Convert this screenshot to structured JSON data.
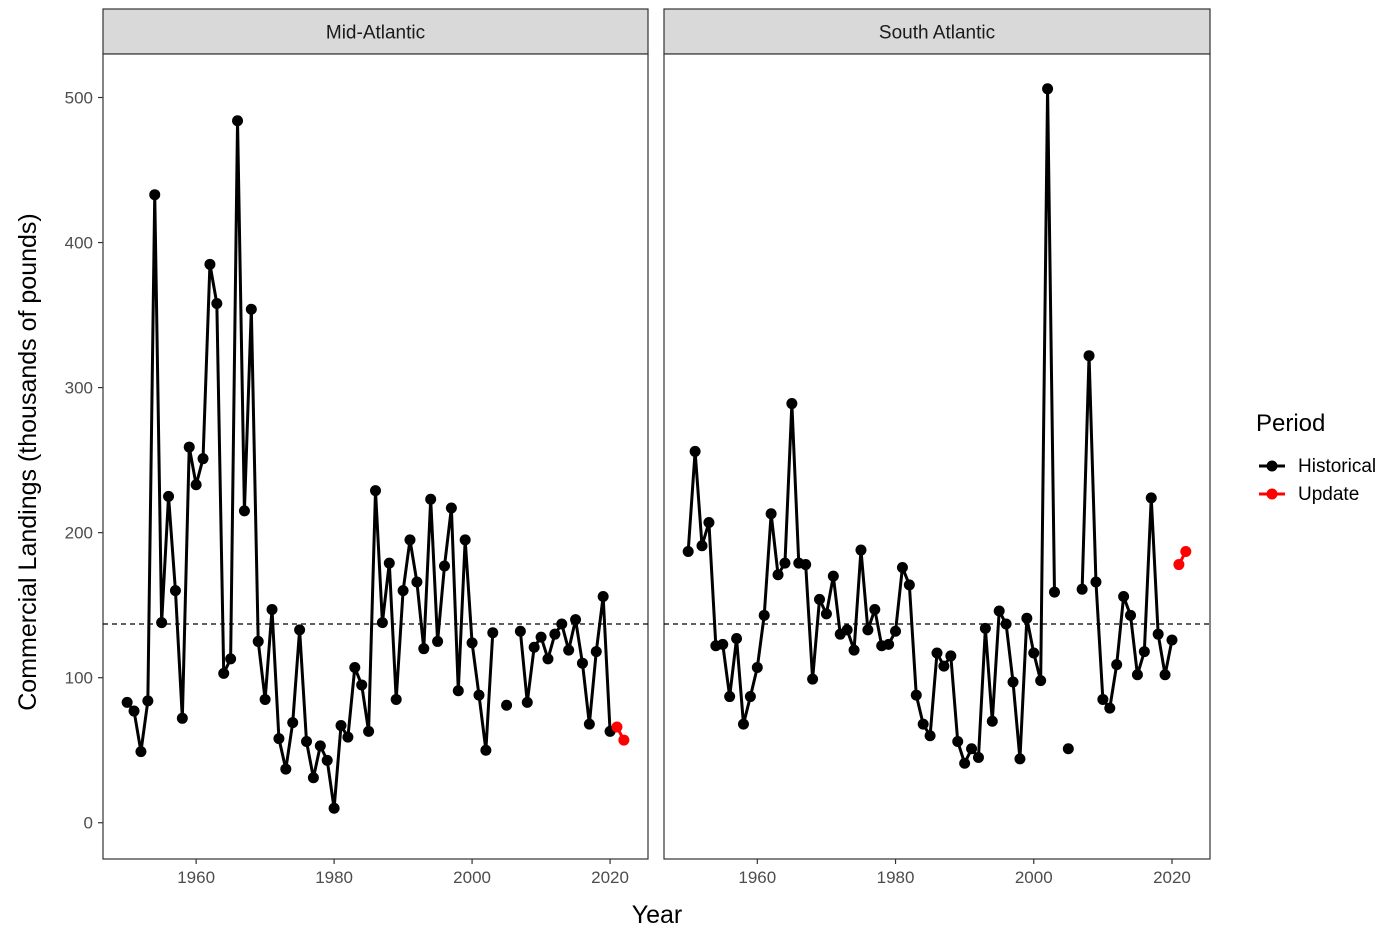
{
  "chart_data": {
    "type": "line",
    "xlabel": "Year",
    "ylabel": "Commercial Landings (thousands of pounds)",
    "xlim": [
      1946.5,
      2025.5
    ],
    "ylim": [
      -25,
      530
    ],
    "x_ticks": [
      1960,
      1980,
      2000,
      2020
    ],
    "y_ticks": [
      0,
      100,
      200,
      300,
      400,
      500
    ],
    "grid": false,
    "legend": {
      "title": "Period",
      "position": "right",
      "entries": [
        {
          "label": "Historical",
          "color": "#000000"
        },
        {
          "label": "Update",
          "color": "#ff0000"
        }
      ]
    },
    "panels": [
      {
        "title": "Mid-Atlantic",
        "reference_line": 137,
        "historical": [
          [
            1950,
            83
          ],
          [
            1951,
            77
          ],
          [
            1952,
            49
          ],
          [
            1953,
            84
          ],
          [
            1954,
            433
          ],
          [
            1955,
            138
          ],
          [
            1956,
            225
          ],
          [
            1957,
            160
          ],
          [
            1958,
            72
          ],
          [
            1959,
            259
          ],
          [
            1960,
            233
          ],
          [
            1961,
            251
          ],
          [
            1962,
            385
          ],
          [
            1963,
            358
          ],
          [
            1964,
            103
          ],
          [
            1965,
            113
          ],
          [
            1966,
            484
          ],
          [
            1967,
            215
          ],
          [
            1968,
            354
          ],
          [
            1969,
            125
          ],
          [
            1970,
            85
          ],
          [
            1971,
            147
          ],
          [
            1972,
            58
          ],
          [
            1973,
            37
          ],
          [
            1974,
            69
          ],
          [
            1975,
            133
          ],
          [
            1976,
            56
          ],
          [
            1977,
            31
          ],
          [
            1978,
            53
          ],
          [
            1979,
            43
          ],
          [
            1980,
            10
          ],
          [
            1981,
            67
          ],
          [
            1982,
            59
          ],
          [
            1983,
            107
          ],
          [
            1984,
            95
          ],
          [
            1985,
            63
          ],
          [
            1986,
            229
          ],
          [
            1987,
            138
          ],
          [
            1988,
            179
          ],
          [
            1989,
            85
          ],
          [
            1990,
            160
          ],
          [
            1991,
            195
          ],
          [
            1992,
            166
          ],
          [
            1993,
            120
          ],
          [
            1994,
            223
          ],
          [
            1995,
            125
          ],
          [
            1996,
            177
          ],
          [
            1997,
            217
          ],
          [
            1998,
            91
          ],
          [
            1999,
            195
          ],
          [
            2000,
            124
          ],
          [
            2001,
            88
          ],
          [
            2002,
            50
          ],
          [
            2003,
            131
          ],
          [
            2004,
            null
          ],
          [
            2005,
            81
          ],
          [
            2006,
            null
          ],
          [
            2007,
            132
          ],
          [
            2008,
            83
          ],
          [
            2009,
            121
          ],
          [
            2010,
            128
          ],
          [
            2011,
            113
          ],
          [
            2012,
            130
          ],
          [
            2013,
            137
          ],
          [
            2014,
            119
          ],
          [
            2015,
            140
          ],
          [
            2016,
            110
          ],
          [
            2017,
            68
          ],
          [
            2018,
            118
          ],
          [
            2019,
            156
          ],
          [
            2020,
            63
          ]
        ],
        "update": [
          [
            2021,
            66
          ],
          [
            2022,
            57
          ]
        ]
      },
      {
        "title": "South Atlantic",
        "reference_line": 137,
        "historical": [
          [
            1950,
            187
          ],
          [
            1951,
            256
          ],
          [
            1952,
            191
          ],
          [
            1953,
            207
          ],
          [
            1954,
            122
          ],
          [
            1955,
            123
          ],
          [
            1956,
            87
          ],
          [
            1957,
            127
          ],
          [
            1958,
            68
          ],
          [
            1959,
            87
          ],
          [
            1960,
            107
          ],
          [
            1961,
            143
          ],
          [
            1962,
            213
          ],
          [
            1963,
            171
          ],
          [
            1964,
            179
          ],
          [
            1965,
            289
          ],
          [
            1966,
            179
          ],
          [
            1967,
            178
          ],
          [
            1968,
            99
          ],
          [
            1969,
            154
          ],
          [
            1970,
            144
          ],
          [
            1971,
            170
          ],
          [
            1972,
            130
          ],
          [
            1973,
            133
          ],
          [
            1974,
            119
          ],
          [
            1975,
            188
          ],
          [
            1976,
            133
          ],
          [
            1977,
            147
          ],
          [
            1978,
            122
          ],
          [
            1979,
            123
          ],
          [
            1980,
            132
          ],
          [
            1981,
            176
          ],
          [
            1982,
            164
          ],
          [
            1983,
            88
          ],
          [
            1984,
            68
          ],
          [
            1985,
            60
          ],
          [
            1986,
            117
          ],
          [
            1987,
            108
          ],
          [
            1988,
            115
          ],
          [
            1989,
            56
          ],
          [
            1990,
            41
          ],
          [
            1991,
            51
          ],
          [
            1992,
            45
          ],
          [
            1993,
            134
          ],
          [
            1994,
            70
          ],
          [
            1995,
            146
          ],
          [
            1996,
            137
          ],
          [
            1997,
            97
          ],
          [
            1998,
            44
          ],
          [
            1999,
            141
          ],
          [
            2000,
            117
          ],
          [
            2001,
            98
          ],
          [
            2002,
            506
          ],
          [
            2003,
            159
          ],
          [
            2004,
            null
          ],
          [
            2005,
            51
          ],
          [
            2006,
            null
          ],
          [
            2007,
            161
          ],
          [
            2008,
            322
          ],
          [
            2009,
            166
          ],
          [
            2010,
            85
          ],
          [
            2011,
            79
          ],
          [
            2012,
            109
          ],
          [
            2013,
            156
          ],
          [
            2014,
            143
          ],
          [
            2015,
            102
          ],
          [
            2016,
            118
          ],
          [
            2017,
            224
          ],
          [
            2018,
            130
          ],
          [
            2019,
            102
          ],
          [
            2020,
            126
          ]
        ],
        "update": [
          [
            2021,
            178
          ],
          [
            2022,
            187
          ]
        ]
      }
    ]
  }
}
